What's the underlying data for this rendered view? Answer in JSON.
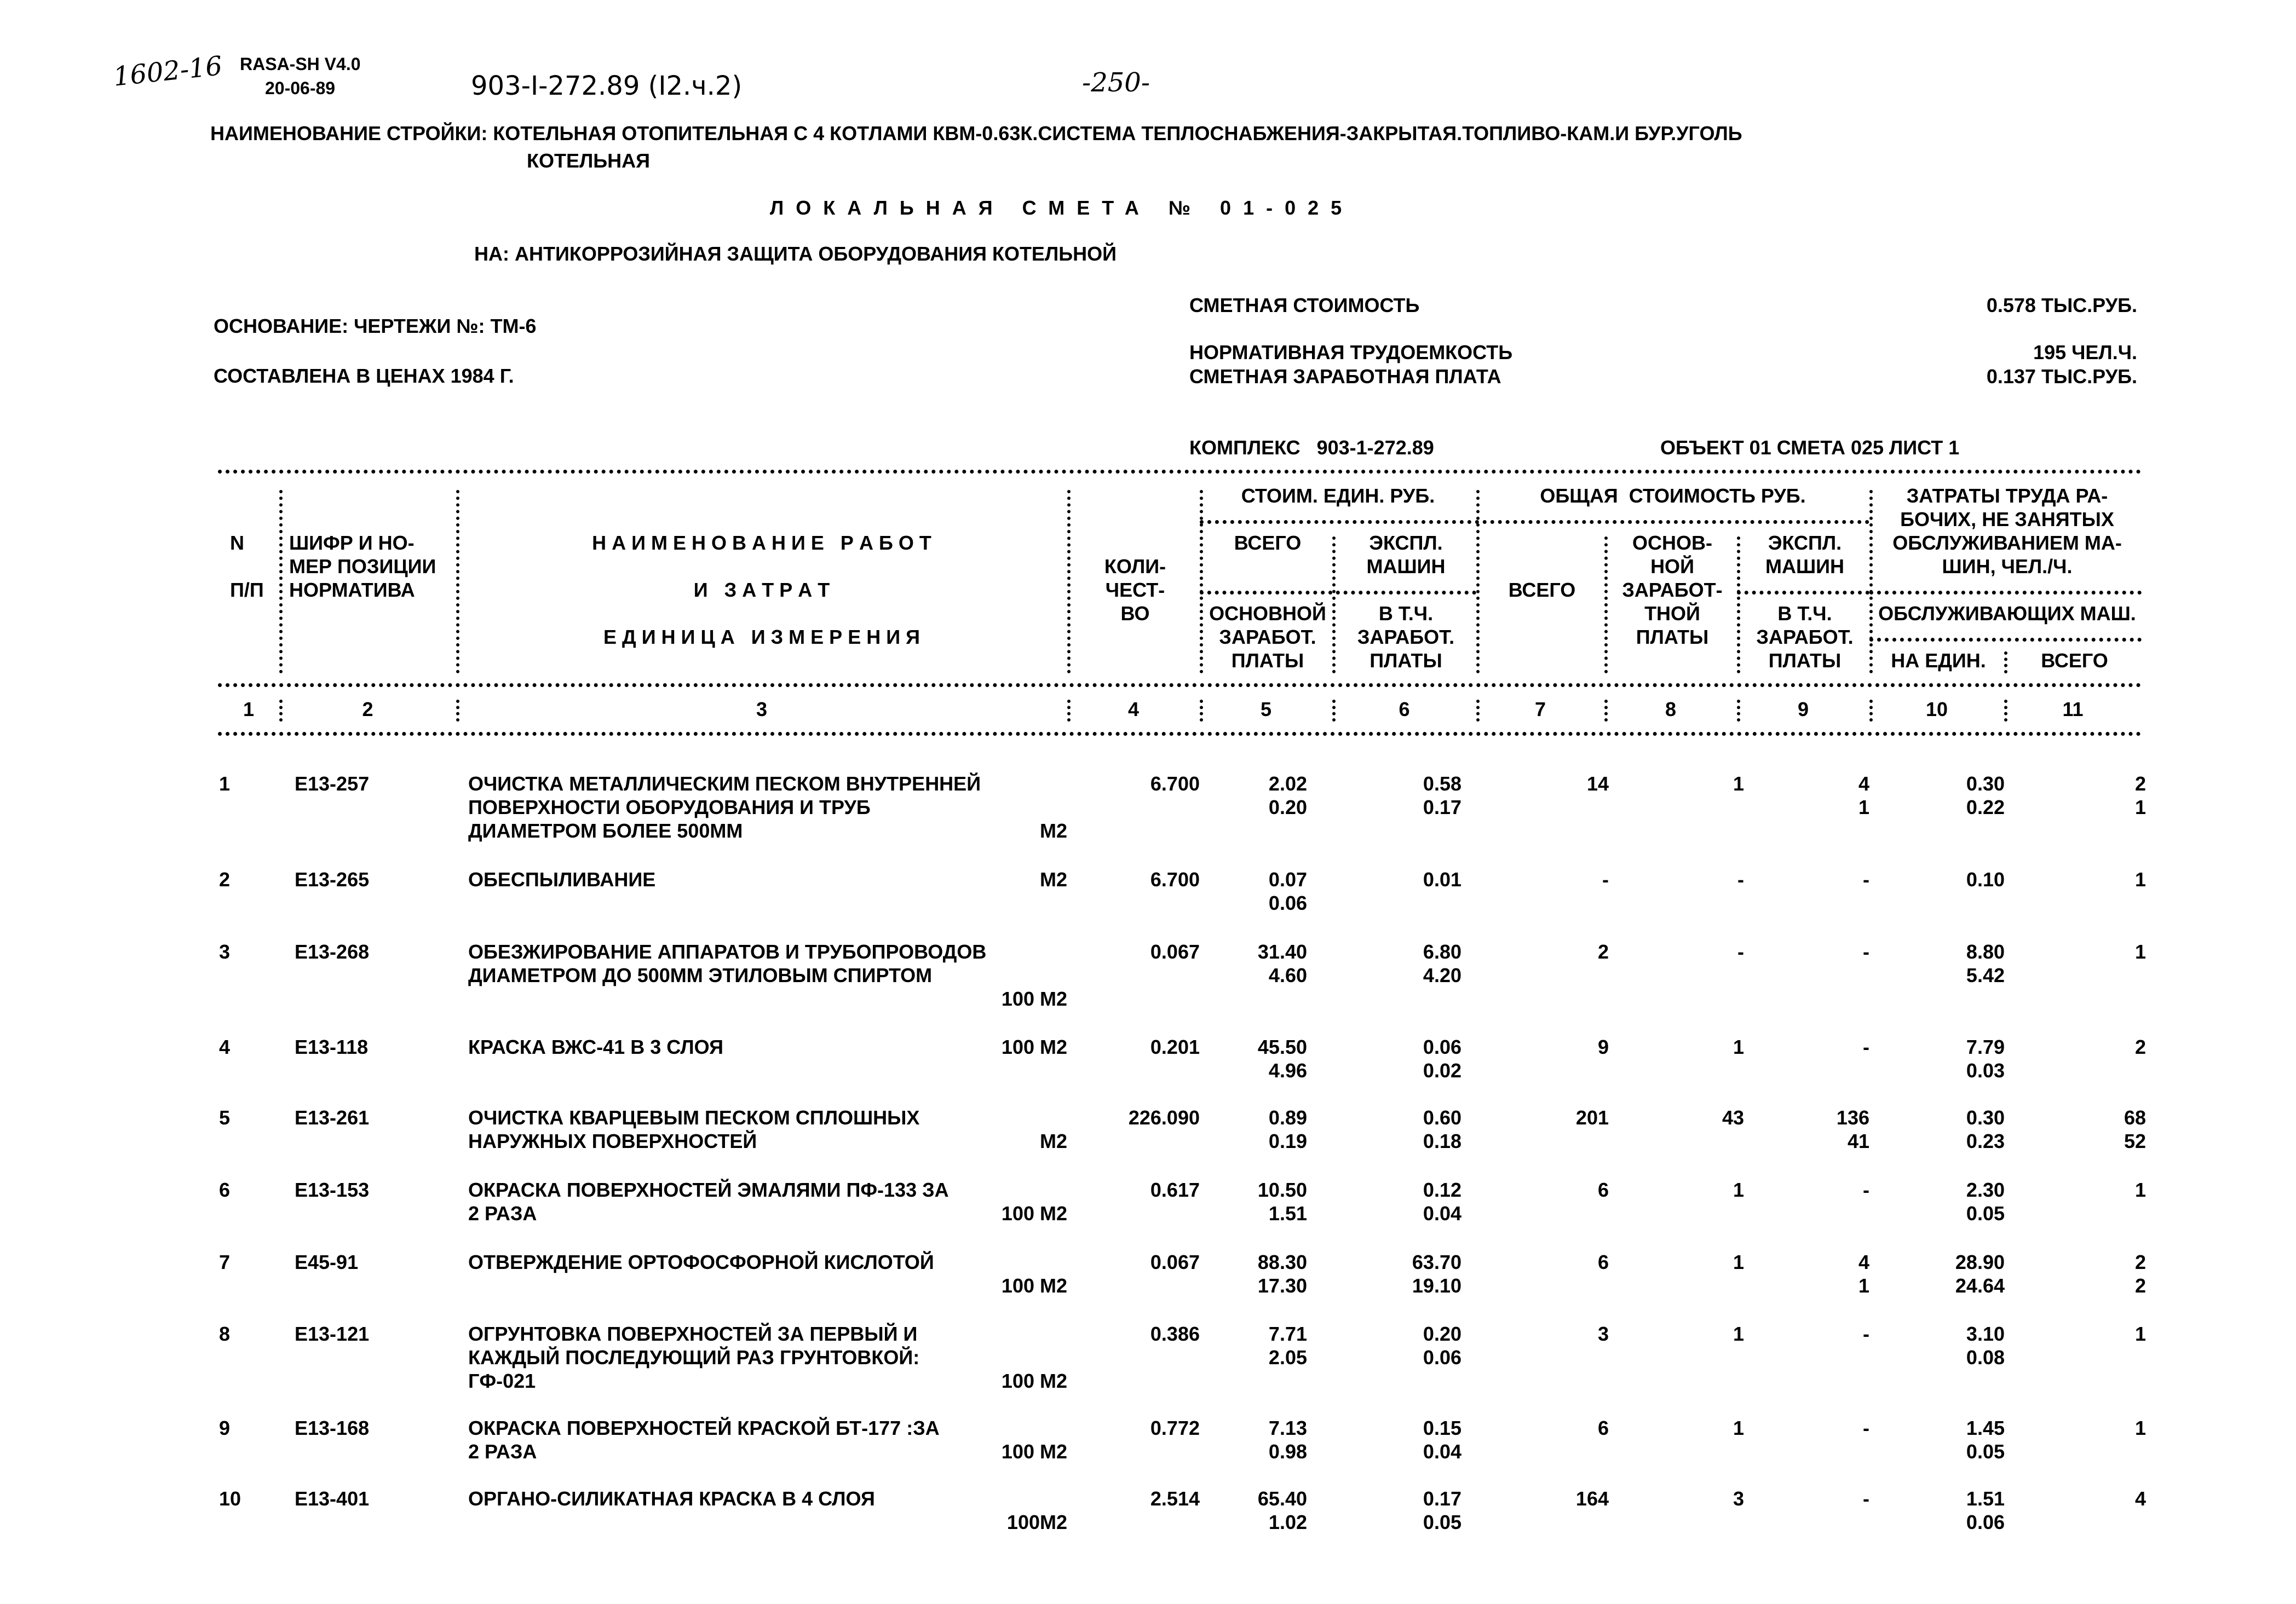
{
  "stamp": {
    "handwritten_number": "1602-16",
    "program": "RASA-SH V4.0",
    "date": "20-06-89"
  },
  "project_code": "903-I-272.89 (I2.ч.2)",
  "page_number": "-250-",
  "construction_name": "НАИМЕНОВАНИЕ СТРОЙКИ: КОТЕЛЬНАЯ ОТОПИТЕЛЬНАЯ С 4 КОТЛАМИ КВМ-0.63К.СИСТЕМА ТЕПЛОСНАБЖЕНИЯ-ЗАКРЫТАЯ.ТОПЛИВО-КАМ.И БУР.УГОЛЬ",
  "construction_name_cont": "КОТЕЛЬНАЯ",
  "doc_title": "ЛОКАЛЬНАЯ СМЕТА № 01-025",
  "subject": "НА: АНТИКОРРОЗИЙНАЯ ЗАЩИТА ОБОРУДОВАНИЯ КОТЕЛЬНОЙ",
  "basis": "ОСНОВАНИЕ: ЧЕРТЕЖИ №: ТМ-6",
  "prices": "СОСТАВЛЕНА В ЦЕНАХ 1984 Г.",
  "summary": [
    {
      "label": "СМЕТНАЯ СТОИМОСТЬ",
      "value": "0.578 ТЫС.РУБ."
    },
    {
      "label": "НОРМАТИВНАЯ ТРУДОЕМКОСТЬ",
      "value": "195 ЧЕЛ.Ч."
    },
    {
      "label": "СМЕТНАЯ ЗАРАБОТНАЯ ПЛАТА",
      "value": "0.137 ТЫС.РУБ."
    }
  ],
  "complex": "КОМПЛЕКС   903-1-272.89",
  "object_sheet": "ОБЪЕКТ 01 СМЕТА 025 ЛИСТ 1",
  "header": {
    "col1": "N\n\nП/П",
    "col2": "ШИФР И НО-\nМЕР ПОЗИЦИИ\nНОРМАТИВА",
    "col3_a": "Н А И М Е Н О В А Н И Е   Р А Б О Т",
    "col3_b": "И   З А Т Р А Т",
    "col3_c": "Е Д И Н И Ц А   И З М Е Р Е Н И Я",
    "col4": "КОЛИ-\nЧЕСТ-\nВО",
    "group_unit_cost": "СТОИМ. ЕДИН. РУБ.",
    "col5_top": "ВСЕГО",
    "col5_bottom": "ОСНОВНОЙ\nЗАРАБОТ.\nПЛАТЫ",
    "col6_top": "ЭКСПЛ.\nМАШИН",
    "col6_bottom": "В Т.Ч.\nЗАРАБОТ.\nПЛАТЫ",
    "group_total_cost": "ОБЩАЯ  СТОИМОСТЬ РУБ.",
    "col7": "ВСЕГО",
    "col8": "ОСНОВ-\nНОЙ\nЗАРАБОТ-\nТНОЙ\nПЛАТЫ",
    "col9_top": "ЭКСПЛ.\nМАШИН",
    "col9_bottom": "В Т.Ч.\nЗАРАБОТ.\nПЛАТЫ",
    "group_labor": "ЗАТРАТЫ ТРУДА РА-\nБОЧИХ, НЕ ЗАНЯТЫХ\nОБСЛУЖИВАНИЕМ МА-\nШИН, ЧЕЛ./Ч.",
    "group_labor_sub": "ОБСЛУЖИВАЮЩИХ МАШ.",
    "col10": "НА ЕДИН.",
    "col11": "ВСЕГО",
    "numbers": [
      "1",
      "2",
      "3",
      "4",
      "5",
      "6",
      "7",
      "8",
      "9",
      "10",
      "11"
    ]
  },
  "rows": [
    {
      "n": "1",
      "code": "Е13-257",
      "desc": "ОЧИСТКА МЕТАЛЛИЧЕСКИМ ПЕСКОМ ВНУТРЕННЕЙ\nПОВЕРХНОСТИ ОБОРУДОВАНИЯ И ТРУБ\nДИАМЕТРОМ БОЛЕЕ 500ММ",
      "unit": "М2",
      "qty": "6.700",
      "c5": [
        "2.02",
        "0.20"
      ],
      "c6": [
        "0.58",
        "0.17"
      ],
      "c7": "14",
      "c8": "1",
      "c9": [
        "4",
        "1"
      ],
      "c10": [
        "0.30",
        "0.22"
      ],
      "c11": [
        "2",
        "1"
      ]
    },
    {
      "n": "2",
      "code": "Е13-265",
      "desc": "ОБЕСПЫЛИВАНИЕ",
      "unit": "М2",
      "qty": "6.700",
      "c5": [
        "0.07",
        "0.06"
      ],
      "c6": [
        "0.01",
        ""
      ],
      "c7": "-",
      "c8": "-",
      "c9": [
        "-",
        ""
      ],
      "c10": [
        "0.10",
        ""
      ],
      "c11": [
        "1",
        ""
      ]
    },
    {
      "n": "3",
      "code": "Е13-268",
      "desc": "ОБЕЗЖИРОВАНИЕ АППАРАТОВ И ТРУБОПРОВОДОВ\nДИАМЕТРОМ ДО 500ММ ЭТИЛОВЫМ СПИРТОМ",
      "unit": "100 М2",
      "qty": "0.067",
      "c5": [
        "31.40",
        "4.60"
      ],
      "c6": [
        "6.80",
        "4.20"
      ],
      "c7": "2",
      "c8": "-",
      "c9": [
        "-",
        ""
      ],
      "c10": [
        "8.80",
        "5.42"
      ],
      "c11": [
        "1",
        ""
      ]
    },
    {
      "n": "4",
      "code": "Е13-118",
      "desc": "КРАСКА ВЖС-41 В 3 СЛОЯ",
      "unit": "100 М2",
      "qty": "0.201",
      "c5": [
        "45.50",
        "4.96"
      ],
      "c6": [
        "0.06",
        "0.02"
      ],
      "c7": "9",
      "c8": "1",
      "c9": [
        "-",
        ""
      ],
      "c10": [
        "7.79",
        "0.03"
      ],
      "c11": [
        "2",
        ""
      ]
    },
    {
      "n": "5",
      "code": "Е13-261",
      "desc": "ОЧИСТКА КВАРЦЕВЫМ ПЕСКОМ СПЛОШНЫХ\nНАРУЖНЫХ ПОВЕРХНОСТЕЙ",
      "unit": "М2",
      "qty": "226.090",
      "c5": [
        "0.89",
        "0.19"
      ],
      "c6": [
        "0.60",
        "0.18"
      ],
      "c7": "201",
      "c8": "43",
      "c9": [
        "136",
        "41"
      ],
      "c10": [
        "0.30",
        "0.23"
      ],
      "c11": [
        "68",
        "52"
      ]
    },
    {
      "n": "6",
      "code": "Е13-153",
      "desc": "ОКРАСКА ПОВЕРХНОСТЕЙ ЭМАЛЯМИ ПФ-133 ЗА\n2 РАЗА",
      "unit": "100 М2",
      "qty": "0.617",
      "c5": [
        "10.50",
        "1.51"
      ],
      "c6": [
        "0.12",
        "0.04"
      ],
      "c7": "6",
      "c8": "1",
      "c9": [
        "-",
        ""
      ],
      "c10": [
        "2.30",
        "0.05"
      ],
      "c11": [
        "1",
        ""
      ]
    },
    {
      "n": "7",
      "code": "Е45-91",
      "desc": "ОТВЕРЖДЕНИЕ ОРТОФОСФОРНОЙ КИСЛОТОЙ",
      "unit": "100 М2",
      "qty": "0.067",
      "c5": [
        "88.30",
        "17.30"
      ],
      "c6": [
        "63.70",
        "19.10"
      ],
      "c7": "6",
      "c8": "1",
      "c9": [
        "4",
        "1"
      ],
      "c10": [
        "28.90",
        "24.64"
      ],
      "c11": [
        "2",
        "2"
      ]
    },
    {
      "n": "8",
      "code": "Е13-121",
      "desc": "ОГРУНТОВКА ПОВЕРХНОСТЕЙ ЗА ПЕРВЫЙ И\nКАЖДЫЙ ПОСЛЕДУЮЩИЙ РАЗ ГРУНТОВКОЙ:\nГФ-021",
      "unit": "100 М2",
      "qty": "0.386",
      "c5": [
        "7.71",
        "2.05"
      ],
      "c6": [
        "0.20",
        "0.06"
      ],
      "c7": "3",
      "c8": "1",
      "c9": [
        "-",
        ""
      ],
      "c10": [
        "3.10",
        "0.08"
      ],
      "c11": [
        "1",
        ""
      ]
    },
    {
      "n": "9",
      "code": "Е13-168",
      "desc": "ОКРАСКА ПОВЕРХНОСТЕЙ КРАСКОЙ БТ-177 :ЗА\n2 РАЗА",
      "unit": "100 М2",
      "qty": "0.772",
      "c5": [
        "7.13",
        "0.98"
      ],
      "c6": [
        "0.15",
        "0.04"
      ],
      "c7": "6",
      "c8": "1",
      "c9": [
        "-",
        ""
      ],
      "c10": [
        "1.45",
        "0.05"
      ],
      "c11": [
        "1",
        ""
      ]
    },
    {
      "n": "10",
      "code": "Е13-401",
      "desc": "ОРГАНО-СИЛИКАТНАЯ КРАСКА В 4 СЛОЯ",
      "unit": "100М2",
      "qty": "2.514",
      "c5": [
        "65.40",
        "1.02"
      ],
      "c6": [
        "0.17",
        "0.05"
      ],
      "c7": "164",
      "c8": "3",
      "c9": [
        "-",
        ""
      ],
      "c10": [
        "1.51",
        "0.06"
      ],
      "c11": [
        "4",
        ""
      ]
    }
  ]
}
